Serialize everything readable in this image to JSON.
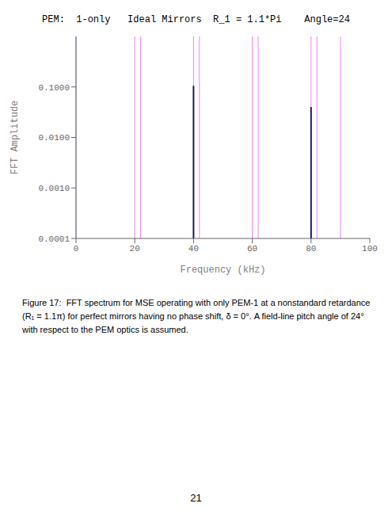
{
  "chart_data": {
    "type": "stem",
    "title": "PEM:  1-only   Ideal Mirrors  R_1 = 1.1*Pi    Angle=24",
    "xlabel": "Frequency (kHz)",
    "ylabel": "FFT Amplitude",
    "x": [
      40,
      80
    ],
    "values": [
      0.105,
      0.04
    ],
    "color": "#1a1a5e",
    "xlim": [
      0,
      100
    ],
    "xticks": [
      0,
      20,
      40,
      60,
      80,
      100
    ],
    "ylim": [
      0.0001,
      1.0
    ],
    "yticks": [
      0.0001,
      {
        "value": 0.001,
        "label": "0.0010"
      },
      {
        "value": 0.01,
        "label": "0.0100"
      },
      {
        "value": 0.1,
        "label": "0.1000"
      }
    ],
    "log": "y",
    "vlines": [
      {
        "x": 0,
        "color": "#aaaadd"
      },
      {
        "x": 20,
        "color": "#ee82ee"
      },
      {
        "x": 22,
        "color": "#ee82ee"
      },
      {
        "x": 40,
        "color": "#ee82ee"
      },
      {
        "x": 42,
        "color": "#ee82ee"
      },
      {
        "x": 60,
        "color": "#ee82ee"
      },
      {
        "x": 62,
        "color": "#ee82ee"
      },
      {
        "x": 80,
        "color": "#ee82ee"
      },
      {
        "x": 82,
        "color": "#ee82ee"
      },
      {
        "x": 90,
        "color": "#ee82ee"
      }
    ],
    "annotations": [
      "Figure 17:  FFT spectrum for MSE operating with only PEM-1 at a nonstandard retardance",
      "(R₁ = 1.1π) for perfect mirrors having no phase shift, δ = 0°. A field-line pitch angle of 24°",
      "with respect to the PEM optics is assumed.",
      "21"
    ]
  }
}
